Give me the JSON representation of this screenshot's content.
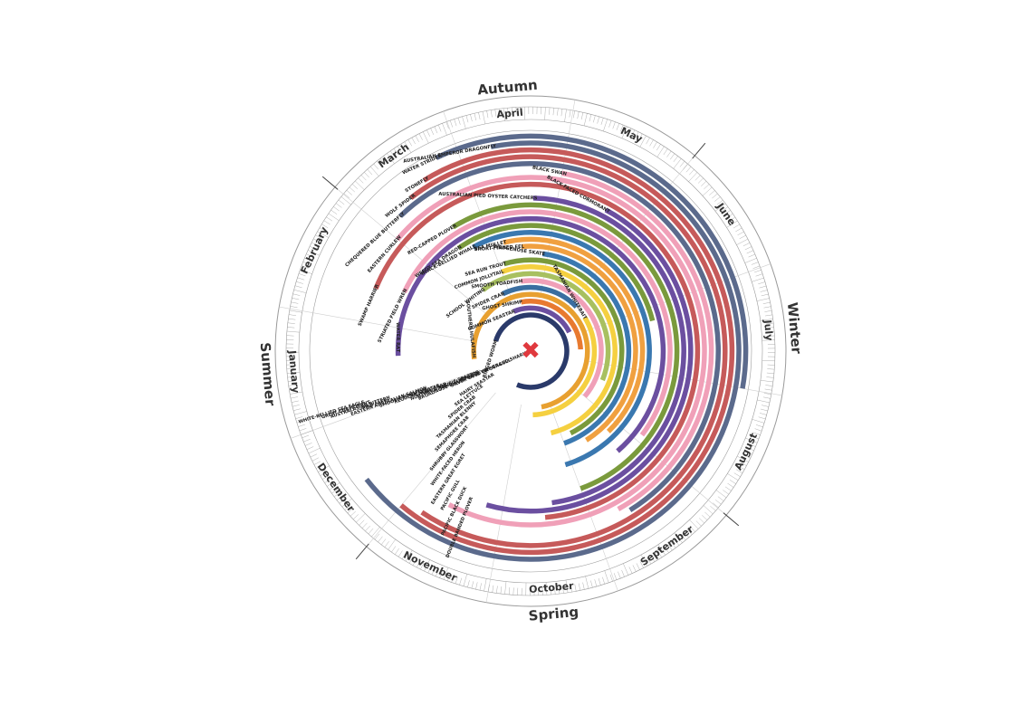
{
  "chart_data": {
    "type": "radial-calendar",
    "title": "",
    "center_marker": "✖",
    "colors": {
      "ring": "#9a9a9a",
      "center": "#e0393e"
    },
    "seasons": [
      {
        "name": "Summer",
        "start_month": 11.0
      },
      {
        "name": "Autumn",
        "start_month": 2.0
      },
      {
        "name": "Winter",
        "start_month": 5.0
      },
      {
        "name": "Spring",
        "start_month": 8.0
      }
    ],
    "months": [
      "January",
      "February",
      "March",
      "April",
      "May",
      "June",
      "July",
      "August",
      "September",
      "October",
      "November",
      "December"
    ],
    "arcs": [
      {
        "label": "WATER STRIDER",
        "color": "#5b6a8c",
        "start": 2.8,
        "end": 7.0,
        "ring": 26
      },
      {
        "label": "AUSTRALIAN EMPEROR DRAGONFLY",
        "color": "#5b6a8c",
        "start": 3.3,
        "end": 11.4,
        "ring": 25
      },
      {
        "label": "STONEFLY",
        "color": "#c65a5a",
        "start": 2.6,
        "end": 11.0,
        "ring": 24
      },
      {
        "label": "WOLF SPIDER",
        "color": "#c65a5a",
        "start": 2.4,
        "end": 10.8,
        "ring": 23
      },
      {
        "label": "CHEQUERED BLUE BUTTERFLY",
        "color": "#5b6a8c",
        "start": 2.2,
        "end": 8.6,
        "ring": 22
      },
      {
        "label": "BLACK SWAN",
        "color": "#f0a0b8",
        "start": 4.0,
        "end": 8.7,
        "ring": 21
      },
      {
        "label": "EASTERN CURLEW",
        "color": "#f0a0b8",
        "start": 2.0,
        "end": 10.6,
        "ring": 20
      },
      {
        "label": "SWAMP HARRIER",
        "color": "#c65a5a",
        "start": 1.4,
        "end": 9.5,
        "ring": 19
      },
      {
        "label": "BLACK-FACED CORMORANT",
        "color": "#6b4fa0",
        "start": 4.6,
        "end": 10.2,
        "ring": 18
      },
      {
        "label": "AUSTRALIAN PIED OYSTER CATCHERS",
        "color": "#6b4fa0",
        "start": 3.7,
        "end": 9.4,
        "ring": 17
      },
      {
        "label": "RED-CAPPED PLOVER",
        "color": "#7a9a3c",
        "start": 2.6,
        "end": 9.0,
        "ring": 16
      },
      {
        "label": "STRIATED FIELD WREN",
        "color": "#f0a0b8",
        "start": 1.5,
        "end": 7.9,
        "ring": 15
      },
      {
        "label": "WATER RAT",
        "color": "#6b4fa0",
        "start": 0.6,
        "end": 8.3,
        "ring": 14
      },
      {
        "label": "WEEDY SEA DRAGON",
        "color": "#7a9a3c",
        "start": 2.5,
        "end": 6.2,
        "ring": 13
      },
      {
        "label": "BLACK-BELLIED WHALE",
        "color": "#3a78b0",
        "start": 2.7,
        "end": 9.1,
        "ring": 12
      },
      {
        "label": "SEA MULLET",
        "color": "#f0a040",
        "start": 3.2,
        "end": 8.2,
        "ring": 11
      },
      {
        "label": "SHORT-FINNED EEL",
        "color": "#f0a040",
        "start": 3.5,
        "end": 8.6,
        "ring": 10
      },
      {
        "label": "WEDGENOSE SKATE",
        "color": "#3a78b0",
        "start": 3.9,
        "end": 9.0,
        "ring": 9
      },
      {
        "label": "SEA RUN TROUT",
        "color": "#7a9a3c",
        "start": 3.1,
        "end": 8.8,
        "ring": 8
      },
      {
        "label": "COMMON JOLLYTAIL",
        "color": "#f5d040",
        "start": 3.0,
        "end": 9.2,
        "ring": 7
      },
      {
        "label": "SCHOOL WHITING",
        "color": "#a8c060",
        "start": 2.4,
        "end": 7.4,
        "ring": 6
      },
      {
        "label": "SMOOTH TOADFISH",
        "color": "#f0a0b8",
        "start": 3.4,
        "end": 8.0,
        "ring": 5
      },
      {
        "label": "SPIDER CRAB",
        "color": "#3a6ea0",
        "start": 2.8,
        "end": 5.2,
        "ring": 4
      },
      {
        "label": "TASMANIAN WHITEBAIT",
        "color": "#f5d040",
        "start": 5.6,
        "end": 9.6,
        "ring": 4
      },
      {
        "label": "SOUTHERN HULAFISH",
        "color": "#e8a030",
        "start": 0.4,
        "end": 9.3,
        "ring": 3
      },
      {
        "label": "GHOST SHRIMP",
        "color": "#e87a30",
        "start": 3.3,
        "end": 6.6,
        "ring": 2
      },
      {
        "label": "COMMON SEASTAR",
        "color": "#6b4fa0",
        "start": 2.9,
        "end": 5.8,
        "ring": 1
      },
      {
        "label": "RINGED WORM",
        "color": "#2a3a6a",
        "start": 1.2,
        "end": 10.4,
        "ring": 0
      }
    ],
    "labels_only": [
      "WHITE-BELLIED SEA EAGLE",
      "GREAT CORMORANT",
      "AUSTRALASIAN BITTERN",
      "PIED FACE",
      "EASTERN AUSTRALIAN SALMON",
      "SMOOTH TOADFISH",
      "REGULAR SEASTAR",
      "SHORE CRAB",
      "NORTHERN PACIFIC SEASTAR",
      "SAND FLATHEAD",
      "BROADNOSE SHARK OR SEVEN GILLED SHARK",
      "SILVER GULL OR SEAGULL",
      "DOUBLE BANDED PLOVER",
      "PACIFIC BLACK DUCK",
      "PACIFIC GULL",
      "EASTERN GREAT EGRET",
      "WHITE-FACED HERON",
      "SHRUBBY GLASSWORT",
      "SEMAPHORE CRAB",
      "TASMANIAN BLENNY",
      "SPIDER CRAB",
      "SEA LETTUCE",
      "HAIRY SEASTAR"
    ]
  }
}
